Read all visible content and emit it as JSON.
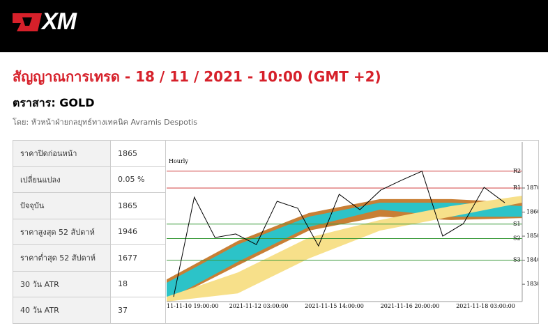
{
  "header": {
    "logo": "XM"
  },
  "title": "สัญญาณการเทรด - 18 / 11 / 2021 - 10:00 (GMT +2)",
  "instrument": "ตราสาร: GOLD",
  "byline": "โดย: หัวหน้าฝ่ายกลยุทธ์ทางเทคนิค Avramis Despotis",
  "table": {
    "rows": [
      [
        "ราคาปิดก่อนหน้า",
        "1865"
      ],
      [
        "เปลี่ยนแปลง",
        "0.05 %"
      ],
      [
        "ปัจจุบัน",
        "1865"
      ],
      [
        "ราคาสูงสุด 52 สัปดาห์",
        "1946"
      ],
      [
        "ราคาต่ำสุด 52 สัปดาห์",
        "1677"
      ],
      [
        "30 วัน ATR",
        "18"
      ],
      [
        "40 วัน ATR",
        "37"
      ]
    ]
  },
  "chart_data": {
    "type": "line",
    "title": "Hourly",
    "x_labels": [
      "11-11-10 19:00:00",
      "2021-11-12 03:00:00",
      "2021-11-15 14:00:00",
      "2021-11-16 20:00:00",
      "2021-11-18 03:00:00"
    ],
    "ylim": [
      1822.8,
      1889.1
    ],
    "yticks": [
      1830,
      1840,
      1850,
      1860,
      1870
    ],
    "levels": [
      {
        "label": "R2",
        "value": 1877,
        "color": "#d04040"
      },
      {
        "label": "R1",
        "value": 1870,
        "color": "#d04040"
      },
      {
        "label": "S1",
        "value": 1855,
        "color": "#3a9a3a"
      },
      {
        "label": "S2",
        "value": 1849,
        "color": "#3a9a3a"
      },
      {
        "label": "S3",
        "value": 1840,
        "color": "#3a9a3a"
      }
    ],
    "bands": [
      {
        "color": "#c87f35",
        "upper": [
          1832.0,
          1848.0,
          1859.6,
          1865.4,
          1865.4,
          1863.9
        ],
        "lower": [
          1822.8,
          1837.8,
          1852.3,
          1858.1,
          1856.7,
          1857.5
        ]
      },
      {
        "color": "#2cc3c8",
        "upper": [
          1830.6,
          1846.5,
          1858.1,
          1863.9,
          1863.9,
          1862.5
        ],
        "lower": [
          1823.3,
          1839.3,
          1853.8,
          1861.0,
          1858.1,
          1858.1
        ]
      },
      {
        "color": "#f7e08a",
        "upper": [
          1824.8,
          1834.9,
          1849.4,
          1856.7,
          1862.5,
          1866.8
        ],
        "lower": [
          1822.8,
          1826.2,
          1840.7,
          1852.3,
          1858.1,
          1863.9
        ]
      }
    ],
    "series": [
      {
        "color": "#000000",
        "values": [
          1824.8,
          1866.2,
          1849.4,
          1850.9,
          1846.5,
          1864.5,
          1861.6,
          1845.9,
          1867.4,
          1861.0,
          1869.1,
          1873.2,
          1877.0,
          1850.0,
          1855.2,
          1870.3,
          1863.9
        ]
      }
    ]
  }
}
